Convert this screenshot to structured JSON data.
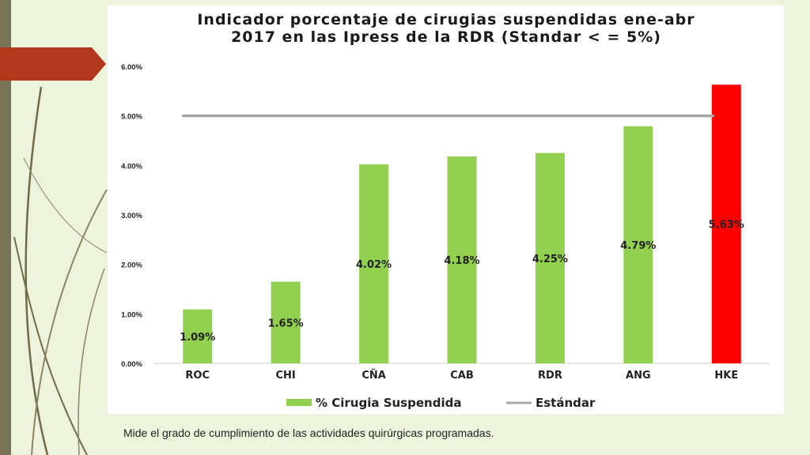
{
  "slide": {
    "caption": "Mide el grado de cumplimiento de las actividades quirúrgicas programadas.",
    "decor": {
      "left_bar_color": "#7a7358",
      "arrow_color": "#b3371c",
      "vine_color": "#6f6a4a"
    }
  },
  "chart_data": {
    "type": "bar",
    "title_lines": [
      "Indicador porcentaje de cirugias suspendidas ene-abr",
      "2017 en las Ipress de la RDR (Standar < = 5%)"
    ],
    "categories": [
      "ROC",
      "CHI",
      "CÑA",
      "CAB",
      "RDR",
      "ANG",
      "HKE"
    ],
    "series": [
      {
        "name": "% Cirugia Suspendida",
        "values": [
          1.09,
          1.65,
          4.02,
          4.18,
          4.25,
          4.79,
          5.63
        ],
        "data_labels": [
          "1.09%",
          "1.65%",
          "4.02%",
          "4.18%",
          "4.25%",
          "4.79%",
          "5.63%"
        ],
        "color": "#92d050",
        "highlight": {
          "category": "HKE",
          "color": "#ff0000"
        }
      },
      {
        "name": "Estándar",
        "type": "line",
        "value": 5.0,
        "color": "#a6a6a6"
      }
    ],
    "y_ticks": [
      {
        "value": 0,
        "label": "0.00%"
      },
      {
        "value": 1,
        "label": "1.00%"
      },
      {
        "value": 2,
        "label": "2.00%"
      },
      {
        "value": 3,
        "label": "3.00%"
      },
      {
        "value": 4,
        "label": "4.00%"
      },
      {
        "value": 5,
        "label": "5.00%"
      },
      {
        "value": 6,
        "label": "6.00%"
      }
    ],
    "ylim": [
      0,
      6
    ],
    "grid": false,
    "legend_position": "bottom"
  }
}
